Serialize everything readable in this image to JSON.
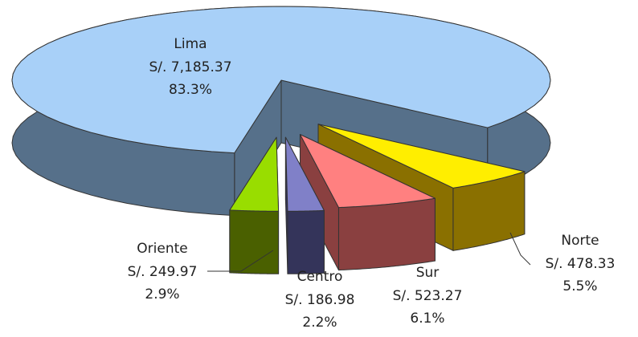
{
  "chart_data": {
    "type": "pie3d",
    "categories": [
      "Lima",
      "Norte",
      "Sur",
      "Centro",
      "Oriente"
    ],
    "values": [
      7185.37,
      478.33,
      523.27,
      186.98,
      249.97
    ],
    "value_labels": [
      "S/. 7,185.37",
      "S/. 478.33",
      "S/. 523.27",
      "S/. 186.98",
      "S/. 249.97"
    ],
    "shares": [
      83.3,
      5.5,
      6.1,
      2.2,
      2.9
    ],
    "share_labels": [
      "83.3%",
      "5.5%",
      "6.1%",
      "2.2%",
      "2.9%"
    ],
    "colors": [
      "#a8d0f8",
      "#ffee00",
      "#ff8080",
      "#8080c8",
      "#99dd00"
    ],
    "side_colors": [
      "#56708a",
      "#8a7000",
      "#8a4040",
      "#34345a",
      "#4a6000"
    ],
    "exploded": [
      false,
      true,
      true,
      true,
      true
    ]
  }
}
